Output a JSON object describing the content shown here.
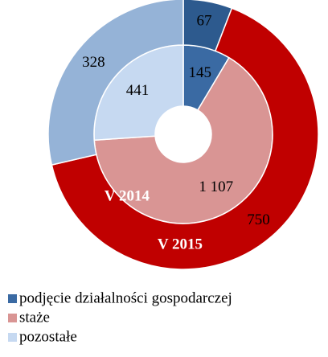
{
  "chart_data": {
    "type": "donut",
    "categories": [
      "podjęcie działalności gospodarczej",
      "staże",
      "pozostałe"
    ],
    "series": [
      {
        "name": "V 2014",
        "colors": [
          "#3a6aa3",
          "#d99594",
          "#c6d9f1"
        ],
        "values": [
          145,
          1107,
          441
        ]
      },
      {
        "name": "V 2015",
        "colors": [
          "#2d5a8e",
          "#c00000",
          "#95b3d7"
        ],
        "values": [
          67,
          750,
          328
        ]
      }
    ],
    "legend": "bottom"
  }
}
